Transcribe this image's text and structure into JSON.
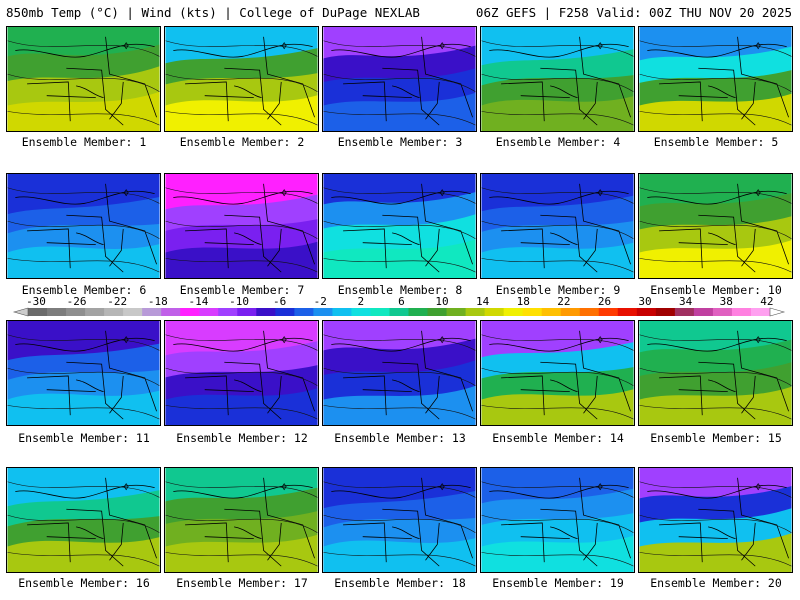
{
  "header": {
    "left": "850mb Temp (°C) | Wind (kts) | College of DuPage NEXLAB",
    "right": "06Z GEFS | F258 Valid: 00Z THU NOV 20 2025"
  },
  "colorbar": {
    "ticks": [
      "-30",
      "-26",
      "-22",
      "-18",
      "-14",
      "-10",
      "-6",
      "-2",
      "2",
      "6",
      "10",
      "14",
      "18",
      "22",
      "26",
      "30",
      "34",
      "38",
      "42"
    ],
    "colors": [
      "#6b6b6b",
      "#7d7d7d",
      "#8f8f8f",
      "#a3a3a3",
      "#b6b6b6",
      "#c8c8c8",
      "#b89ad8",
      "#c060e8",
      "#ff20ff",
      "#d83cff",
      "#a040ff",
      "#7a20f0",
      "#3a10c8",
      "#1a30d8",
      "#1c60e8",
      "#1c90f0",
      "#10c0f0",
      "#10e0e0",
      "#10e8c0",
      "#10c890",
      "#20b050",
      "#40a030",
      "#70b020",
      "#a8c810",
      "#d0d800",
      "#f0f000",
      "#ffe000",
      "#ffc000",
      "#ff9a00",
      "#ff7000",
      "#ff3a00",
      "#e81000",
      "#c80000",
      "#a00000",
      "#a03060",
      "#c040a0",
      "#e060c0",
      "#ff80e0",
      "#ffa0f0"
    ]
  },
  "panels": [
    {
      "label": "Ensemble Member: 1"
    },
    {
      "label": "Ensemble Member: 2"
    },
    {
      "label": "Ensemble Member: 3"
    },
    {
      "label": "Ensemble Member: 4"
    },
    {
      "label": "Ensemble Member: 5"
    },
    {
      "label": "Ensemble Member: 6"
    },
    {
      "label": "Ensemble Member: 7"
    },
    {
      "label": "Ensemble Member: 8"
    },
    {
      "label": "Ensemble Member: 9"
    },
    {
      "label": "Ensemble Member: 10"
    },
    {
      "label": "Ensemble Member: 11"
    },
    {
      "label": "Ensemble Member: 12"
    },
    {
      "label": "Ensemble Member: 13"
    },
    {
      "label": "Ensemble Member: 14"
    },
    {
      "label": "Ensemble Member: 15"
    },
    {
      "label": "Ensemble Member: 16"
    },
    {
      "label": "Ensemble Member: 17"
    },
    {
      "label": "Ensemble Member: 18"
    },
    {
      "label": "Ensemble Member: 19"
    },
    {
      "label": "Ensemble Member: 20"
    }
  ],
  "panel_palettes": [
    [
      "#20b050",
      "#40a030",
      "#a8c810",
      "#d0d800"
    ],
    [
      "#10c0f0",
      "#40a030",
      "#a8c810",
      "#f0f000"
    ],
    [
      "#a040ff",
      "#3a10c8",
      "#1a30d8",
      "#1c60e8"
    ],
    [
      "#10c0f0",
      "#10c890",
      "#40a030",
      "#70b020"
    ],
    [
      "#1c90f0",
      "#10e0e0",
      "#40a030",
      "#d0d800"
    ],
    [
      "#1a30d8",
      "#1c60e8",
      "#1c90f0",
      "#10c0f0"
    ],
    [
      "#ff20ff",
      "#a040ff",
      "#7a20f0",
      "#3a10c8"
    ],
    [
      "#1a30d8",
      "#1c90f0",
      "#10e0e0",
      "#10e8c0"
    ],
    [
      "#1a30d8",
      "#1c60e8",
      "#1c90f0",
      "#10c0f0"
    ],
    [
      "#20b050",
      "#40a030",
      "#a8c810",
      "#f0f000"
    ],
    [
      "#3a10c8",
      "#1c60e8",
      "#1c90f0",
      "#10c0f0"
    ],
    [
      "#d83cff",
      "#a040ff",
      "#3a10c8",
      "#1a30d8"
    ],
    [
      "#a040ff",
      "#3a10c8",
      "#1a30d8",
      "#1c90f0"
    ],
    [
      "#a040ff",
      "#10c0f0",
      "#20b050",
      "#a8c810"
    ],
    [
      "#10c890",
      "#20b050",
      "#40a030",
      "#a8c810"
    ],
    [
      "#10c0f0",
      "#10c890",
      "#40a030",
      "#a8c810"
    ],
    [
      "#10c890",
      "#40a030",
      "#70b020",
      "#a8c810"
    ],
    [
      "#1a30d8",
      "#1c60e8",
      "#1c90f0",
      "#10c0f0"
    ],
    [
      "#1c60e8",
      "#1c90f0",
      "#10c0f0",
      "#10e0e0"
    ],
    [
      "#a040ff",
      "#1a30d8",
      "#10c0f0",
      "#a8c810"
    ]
  ]
}
